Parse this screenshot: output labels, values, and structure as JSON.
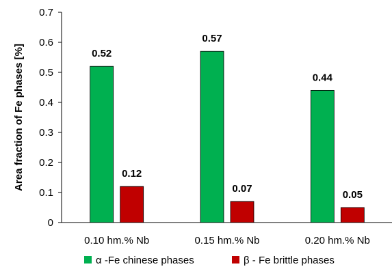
{
  "chart_data": {
    "type": "bar",
    "title": "",
    "xlabel": "",
    "ylabel": "Area fraction of Fe phases  [%]",
    "ylim": [
      0,
      0.7
    ],
    "yticks": [
      0,
      0.1,
      0.2,
      0.3,
      0.4,
      0.5,
      0.6,
      0.7
    ],
    "ytick_labels": [
      "0",
      "0.1",
      "0.2",
      "0.3",
      "0.4",
      "0.5",
      "0.6",
      "0.7"
    ],
    "categories": [
      "0.10 hm.% Nb",
      "0.15 hm.% Nb",
      "0.20 hm.% Nb"
    ],
    "series": [
      {
        "name": "α -Fe chinese phases",
        "color": "#00B050",
        "values": [
          0.52,
          0.57,
          0.44
        ],
        "labels": [
          "0.52",
          "0.57",
          "0.44"
        ]
      },
      {
        "name": "β - Fe brittle phases",
        "color": "#C00000",
        "values": [
          0.12,
          0.07,
          0.05
        ],
        "labels": [
          "0.12",
          "0.07",
          "0.05"
        ]
      }
    ],
    "grid": false,
    "legend_position": "bottom"
  }
}
